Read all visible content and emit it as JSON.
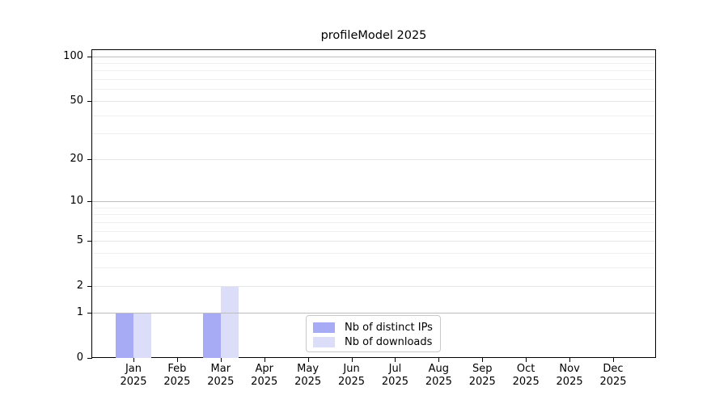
{
  "chart_data": {
    "type": "bar",
    "title": "profileModel 2025",
    "categories": [
      "Jan 2025",
      "Feb 2025",
      "Mar 2025",
      "Apr 2025",
      "May 2025",
      "Jun 2025",
      "Jul 2025",
      "Aug 2025",
      "Sep 2025",
      "Oct 2025",
      "Nov 2025",
      "Dec 2025"
    ],
    "series": [
      {
        "name": "Nb of distinct IPs",
        "color": "#a7aaf5",
        "values": [
          1,
          0,
          1,
          0,
          0,
          0,
          0,
          0,
          0,
          0,
          0,
          0
        ]
      },
      {
        "name": "Nb of downloads",
        "color": "#dcdef9",
        "values": [
          1,
          0,
          2,
          0,
          0,
          0,
          0,
          0,
          0,
          0,
          0,
          0
        ]
      }
    ],
    "xlabel": "",
    "ylabel": "",
    "y_scale": "log1p",
    "ylim": [
      0,
      110
    ],
    "y_ticks": [
      0,
      1,
      2,
      5,
      10,
      20,
      50,
      100
    ],
    "y_minor_gridlines": [
      3,
      4,
      6,
      7,
      8,
      9,
      30,
      40,
      60,
      70,
      80,
      90
    ],
    "grid": {
      "decade_lines": [
        1,
        10,
        100
      ],
      "decade_color": "#bdbdbd",
      "labeled_color": "#e4e4e4",
      "minor_color": "#f0f0f0"
    },
    "legend_position": "bottom-center",
    "axis_color": "#000000",
    "background": "#ffffff"
  }
}
